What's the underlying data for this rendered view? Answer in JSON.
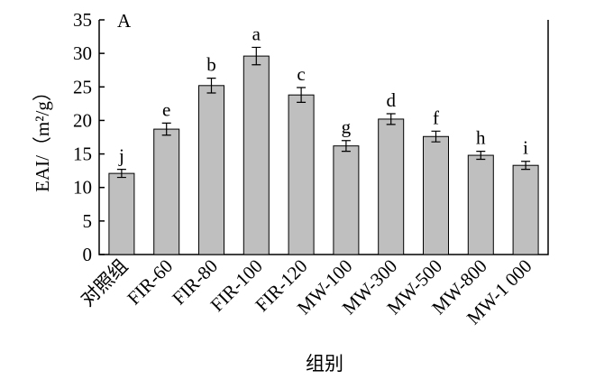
{
  "chart_data": {
    "type": "bar",
    "panel_label": "A",
    "y_label": "EAI/（m²/g）",
    "x_label": "组别",
    "categories": [
      "对照组",
      "FIR-60",
      "FIR-80",
      "FIR-100",
      "FIR-120",
      "MW-100",
      "MW-300",
      "MW-500",
      "MW-800",
      "MW-1 000"
    ],
    "values": [
      12.1,
      18.7,
      25.2,
      29.6,
      23.8,
      16.2,
      20.2,
      17.6,
      14.8,
      13.3
    ],
    "errors": [
      0.6,
      0.9,
      1.1,
      1.3,
      1.1,
      0.8,
      0.8,
      0.8,
      0.6,
      0.6
    ],
    "annotations": [
      "j",
      "e",
      "b",
      "a",
      "c",
      "g",
      "d",
      "f",
      "h",
      "i"
    ],
    "color": "#bfbfbf",
    "ylim": [
      0,
      35
    ],
    "yticks": [
      0,
      5,
      10,
      15,
      20,
      25,
      30,
      35
    ]
  }
}
